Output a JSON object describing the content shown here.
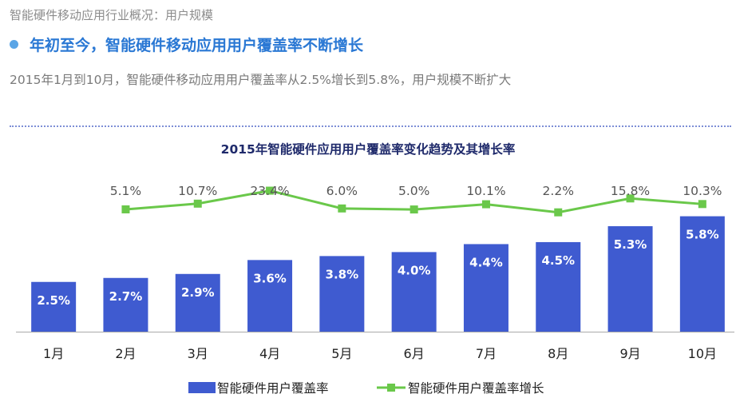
{
  "page": {
    "section_label": "智能硬件移动应用行业概况：用户规模",
    "headline": "年初至今，智能硬件移动应用用户覆盖率不断增长",
    "subline": "2015年1月到10月，智能硬件移动应用用户覆盖率从2.5%增长到5.8%，用户规模不断扩大"
  },
  "colors": {
    "bar": "#3f5bd0",
    "line": "#6ac84a",
    "axis": "#aaaaaa",
    "label_dark": "#222222",
    "label_growth": "#555555"
  },
  "chart_data": {
    "type": "bar",
    "title": "2015年智能硬件应用用户覆盖率变化趋势及其增长率",
    "categories": [
      "1月",
      "2月",
      "3月",
      "4月",
      "5月",
      "6月",
      "7月",
      "8月",
      "9月",
      "10月"
    ],
    "series": [
      {
        "name": "智能硬件用户覆盖率",
        "type": "bar",
        "values": [
          2.5,
          2.7,
          2.9,
          3.6,
          3.8,
          4.0,
          4.4,
          4.5,
          5.3,
          5.8
        ],
        "labels": [
          "2.5%",
          "2.7%",
          "2.9%",
          "3.6%",
          "3.8%",
          "4.0%",
          "4.4%",
          "4.5%",
          "5.3%",
          "5.8%"
        ]
      },
      {
        "name": "智能硬件用户覆盖率增长",
        "type": "line",
        "values": [
          null,
          5.1,
          10.7,
          23.4,
          6.0,
          5.0,
          10.1,
          2.2,
          15.8,
          10.3
        ],
        "labels": [
          "",
          "5.1%",
          "10.7%",
          "23.4%",
          "6.0%",
          "5.0%",
          "10.1%",
          "2.2%",
          "15.8%",
          "10.3%"
        ]
      }
    ],
    "legend": "bottom-center",
    "grid": false
  }
}
